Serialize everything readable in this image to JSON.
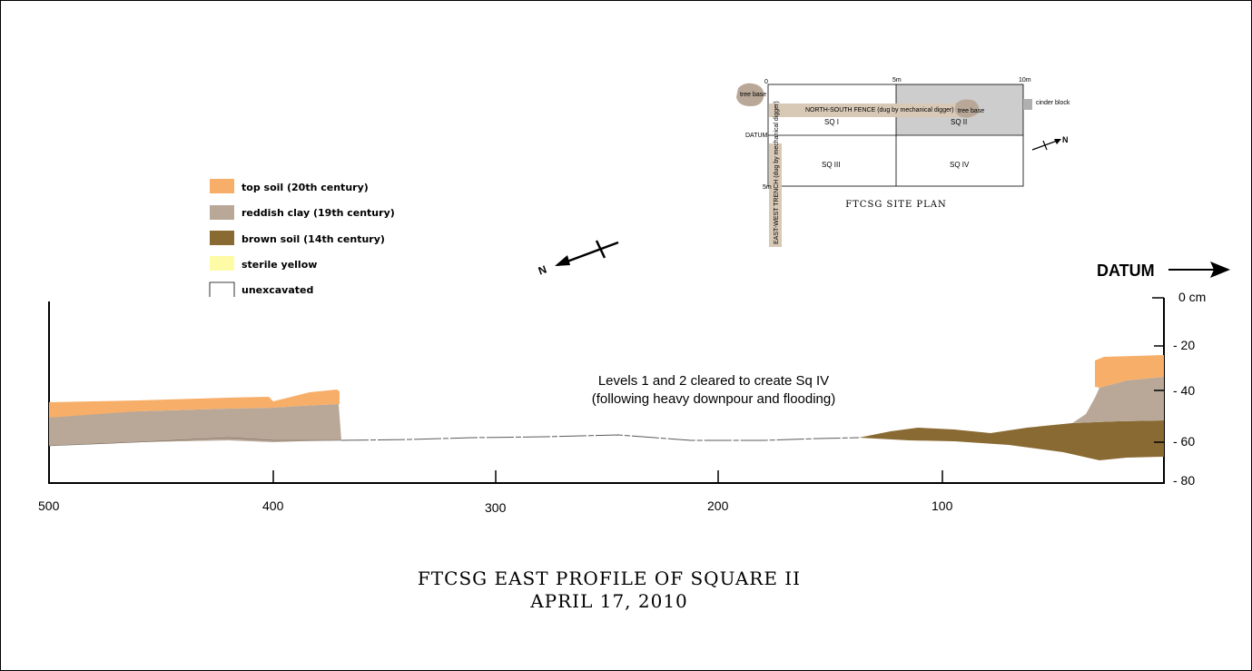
{
  "legend": [
    {
      "label": "top soil (20th century)",
      "color": "#f7ae68"
    },
    {
      "label": "reddish clay (19th century)",
      "color": "#b9a898"
    },
    {
      "label": "brown soil (14th century)",
      "color": "#8a6a33"
    },
    {
      "label": "sterile yellow",
      "color": "#fdfba5"
    },
    {
      "label": "unexcavated",
      "color": "#ffffff"
    }
  ],
  "compass": {
    "label": "N"
  },
  "datum": {
    "label": "DATUM"
  },
  "depth_axis": {
    "top_label": "0 cm",
    "ticks": [
      "- 20",
      "- 40",
      "- 60",
      "- 80"
    ]
  },
  "horizontal_axis": {
    "ticks": [
      "500",
      "400",
      "300",
      "200",
      "100"
    ]
  },
  "annotation": {
    "line1": "Levels 1 and 2 cleared to create Sq IV",
    "line2": "(following heavy downpour and flooding)"
  },
  "title": {
    "line1": "FTCSG EAST PROFILE OF SQUARE II",
    "line2": "APRIL 17, 2010"
  },
  "site_plan": {
    "title": "FTCSG SITE PLAN",
    "squares": [
      "SQ I",
      "SQ II",
      "SQ III",
      "SQ IV"
    ],
    "datum_label": "DATUM",
    "compass_label": "N",
    "grid_labels": [
      "0",
      "5m",
      "10m",
      "5m"
    ],
    "trench_label": "NORTH-SOUTH FENCE (dug by mechanical digger)",
    "tree_label_1": "tree base",
    "tree_label_2": "tree base",
    "fence_label": "cinder block",
    "east_trench_label": "EAST-WEST TRENCH (dug by mechanical digger)",
    "colors": {
      "shaded": "#cdcdcd",
      "trench": "#d8c8b6",
      "tree": "#b9a898"
    }
  }
}
